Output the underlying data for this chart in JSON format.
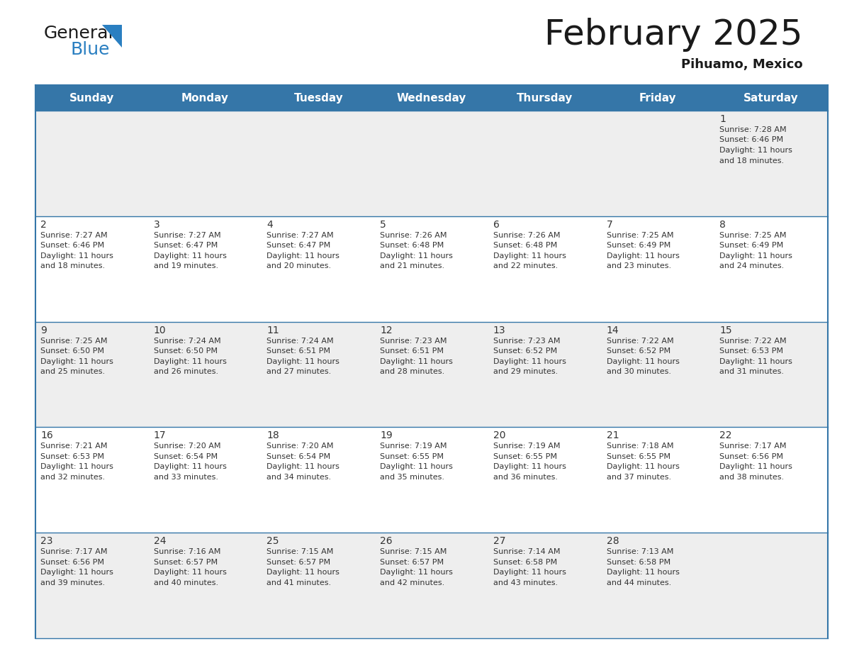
{
  "title": "February 2025",
  "subtitle": "Pihuamo, Mexico",
  "header_bg_color": "#3576a8",
  "header_text_color": "#ffffff",
  "cell_bg_color_odd": "#eeeeee",
  "cell_bg_color_even": "#ffffff",
  "border_color": "#3576a8",
  "day_names": [
    "Sunday",
    "Monday",
    "Tuesday",
    "Wednesday",
    "Thursday",
    "Friday",
    "Saturday"
  ],
  "calendar_data": [
    [
      {
        "day": "",
        "sunrise": "",
        "sunset": "",
        "daylight": ""
      },
      {
        "day": "",
        "sunrise": "",
        "sunset": "",
        "daylight": ""
      },
      {
        "day": "",
        "sunrise": "",
        "sunset": "",
        "daylight": ""
      },
      {
        "day": "",
        "sunrise": "",
        "sunset": "",
        "daylight": ""
      },
      {
        "day": "",
        "sunrise": "",
        "sunset": "",
        "daylight": ""
      },
      {
        "day": "",
        "sunrise": "",
        "sunset": "",
        "daylight": ""
      },
      {
        "day": "1",
        "sunrise": "7:28 AM",
        "sunset": "6:46 PM",
        "daylight": "11 hours and 18 minutes."
      }
    ],
    [
      {
        "day": "2",
        "sunrise": "7:27 AM",
        "sunset": "6:46 PM",
        "daylight": "11 hours and 18 minutes."
      },
      {
        "day": "3",
        "sunrise": "7:27 AM",
        "sunset": "6:47 PM",
        "daylight": "11 hours and 19 minutes."
      },
      {
        "day": "4",
        "sunrise": "7:27 AM",
        "sunset": "6:47 PM",
        "daylight": "11 hours and 20 minutes."
      },
      {
        "day": "5",
        "sunrise": "7:26 AM",
        "sunset": "6:48 PM",
        "daylight": "11 hours and 21 minutes."
      },
      {
        "day": "6",
        "sunrise": "7:26 AM",
        "sunset": "6:48 PM",
        "daylight": "11 hours and 22 minutes."
      },
      {
        "day": "7",
        "sunrise": "7:25 AM",
        "sunset": "6:49 PM",
        "daylight": "11 hours and 23 minutes."
      },
      {
        "day": "8",
        "sunrise": "7:25 AM",
        "sunset": "6:49 PM",
        "daylight": "11 hours and 24 minutes."
      }
    ],
    [
      {
        "day": "9",
        "sunrise": "7:25 AM",
        "sunset": "6:50 PM",
        "daylight": "11 hours and 25 minutes."
      },
      {
        "day": "10",
        "sunrise": "7:24 AM",
        "sunset": "6:50 PM",
        "daylight": "11 hours and 26 minutes."
      },
      {
        "day": "11",
        "sunrise": "7:24 AM",
        "sunset": "6:51 PM",
        "daylight": "11 hours and 27 minutes."
      },
      {
        "day": "12",
        "sunrise": "7:23 AM",
        "sunset": "6:51 PM",
        "daylight": "11 hours and 28 minutes."
      },
      {
        "day": "13",
        "sunrise": "7:23 AM",
        "sunset": "6:52 PM",
        "daylight": "11 hours and 29 minutes."
      },
      {
        "day": "14",
        "sunrise": "7:22 AM",
        "sunset": "6:52 PM",
        "daylight": "11 hours and 30 minutes."
      },
      {
        "day": "15",
        "sunrise": "7:22 AM",
        "sunset": "6:53 PM",
        "daylight": "11 hours and 31 minutes."
      }
    ],
    [
      {
        "day": "16",
        "sunrise": "7:21 AM",
        "sunset": "6:53 PM",
        "daylight": "11 hours and 32 minutes."
      },
      {
        "day": "17",
        "sunrise": "7:20 AM",
        "sunset": "6:54 PM",
        "daylight": "11 hours and 33 minutes."
      },
      {
        "day": "18",
        "sunrise": "7:20 AM",
        "sunset": "6:54 PM",
        "daylight": "11 hours and 34 minutes."
      },
      {
        "day": "19",
        "sunrise": "7:19 AM",
        "sunset": "6:55 PM",
        "daylight": "11 hours and 35 minutes."
      },
      {
        "day": "20",
        "sunrise": "7:19 AM",
        "sunset": "6:55 PM",
        "daylight": "11 hours and 36 minutes."
      },
      {
        "day": "21",
        "sunrise": "7:18 AM",
        "sunset": "6:55 PM",
        "daylight": "11 hours and 37 minutes."
      },
      {
        "day": "22",
        "sunrise": "7:17 AM",
        "sunset": "6:56 PM",
        "daylight": "11 hours and 38 minutes."
      }
    ],
    [
      {
        "day": "23",
        "sunrise": "7:17 AM",
        "sunset": "6:56 PM",
        "daylight": "11 hours and 39 minutes."
      },
      {
        "day": "24",
        "sunrise": "7:16 AM",
        "sunset": "6:57 PM",
        "daylight": "11 hours and 40 minutes."
      },
      {
        "day": "25",
        "sunrise": "7:15 AM",
        "sunset": "6:57 PM",
        "daylight": "11 hours and 41 minutes."
      },
      {
        "day": "26",
        "sunrise": "7:15 AM",
        "sunset": "6:57 PM",
        "daylight": "11 hours and 42 minutes."
      },
      {
        "day": "27",
        "sunrise": "7:14 AM",
        "sunset": "6:58 PM",
        "daylight": "11 hours and 43 minutes."
      },
      {
        "day": "28",
        "sunrise": "7:13 AM",
        "sunset": "6:58 PM",
        "daylight": "11 hours and 44 minutes."
      },
      {
        "day": "",
        "sunrise": "",
        "sunset": "",
        "daylight": ""
      }
    ]
  ],
  "logo_general_color": "#1a1a1a",
  "logo_blue_color": "#2a7fc1",
  "text_color": "#333333",
  "title_fontsize": 36,
  "subtitle_fontsize": 13,
  "dayname_fontsize": 11,
  "daynum_fontsize": 10,
  "cell_text_fontsize": 8
}
